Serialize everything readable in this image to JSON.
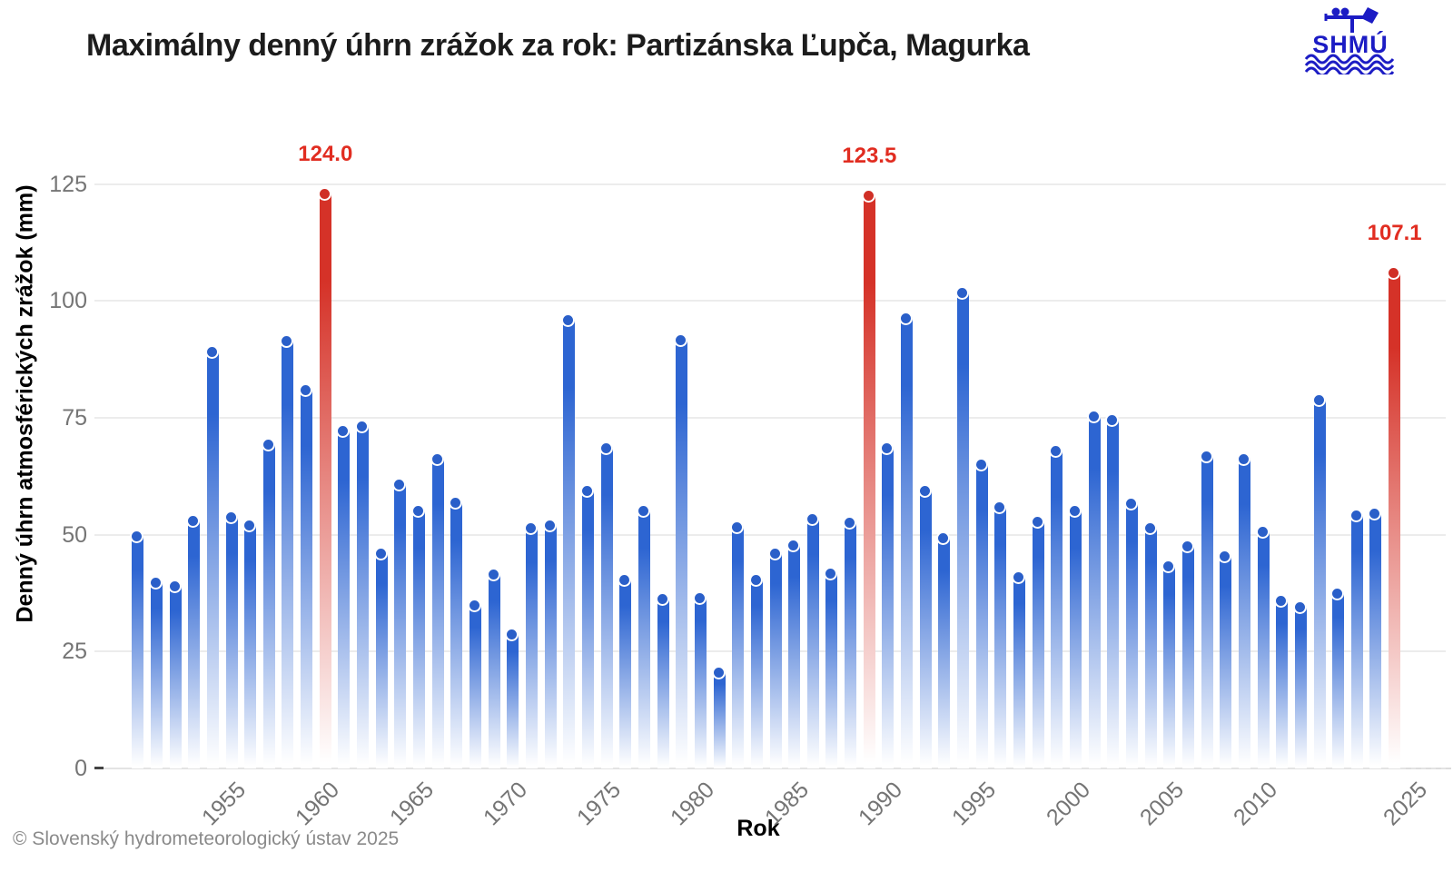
{
  "header": {
    "title": "Maximálny denný úhrn zrážok za rok: Partizánska Ľupča, Magurka",
    "logo_text": "SHMÚ"
  },
  "footer": {
    "credit": "© Slovenský hydrometeorologický ústav 2025"
  },
  "chart_data": {
    "type": "bar",
    "title": "Maximálny denný úhrn zrážok za rok: Partizánska Ľupča, Magurka",
    "xlabel": "Rok",
    "ylabel": "Denný úhrn atmosférických zrážok (mm)",
    "ylim": [
      0,
      130
    ],
    "y_ticks": [
      0,
      25,
      50,
      75,
      100,
      125
    ],
    "grid": "horizontal",
    "legend": "none",
    "colors": {
      "bar_blue": "#2d65d2",
      "bar_red": "#d53228",
      "annotation_red": "#e12d21",
      "axis_text": "#757575",
      "gridline": "#ececec"
    },
    "x_ticks": [
      {
        "label": "1955",
        "slot": 5
      },
      {
        "label": "1960",
        "slot": 10
      },
      {
        "label": "1965",
        "slot": 15
      },
      {
        "label": "1970",
        "slot": 20
      },
      {
        "label": "1975",
        "slot": 25
      },
      {
        "label": "1980",
        "slot": 30
      },
      {
        "label": "1985",
        "slot": 35
      },
      {
        "label": "1990",
        "slot": 40
      },
      {
        "label": "1995",
        "slot": 45
      },
      {
        "label": "2000",
        "slot": 50
      },
      {
        "label": "2005",
        "slot": 55
      },
      {
        "label": "2010",
        "slot": 60
      },
      {
        "label": "2025",
        "slot": 68
      }
    ],
    "highlighted_annotations": [
      {
        "year": 1960,
        "value": "124.0"
      },
      {
        "year": 1989,
        "value": "123.5"
      },
      {
        "year": 2025,
        "value": "107.1"
      }
    ],
    "bars": [
      {
        "year": 1950,
        "value": 50.7
      },
      {
        "year": 1951,
        "value": 40.7
      },
      {
        "year": 1952,
        "value": 40.1
      },
      {
        "year": 1953,
        "value": 54.0
      },
      {
        "year": 1954,
        "value": 90.2
      },
      {
        "year": 1955,
        "value": 54.7
      },
      {
        "year": 1956,
        "value": 53.0
      },
      {
        "year": 1957,
        "value": 70.3
      },
      {
        "year": 1958,
        "value": 92.5
      },
      {
        "year": 1959,
        "value": 81.9
      },
      {
        "year": 1960,
        "value": 124.0,
        "red": true
      },
      {
        "year": 1961,
        "value": 73.3
      },
      {
        "year": 1962,
        "value": 74.3
      },
      {
        "year": 1963,
        "value": 47.1
      },
      {
        "year": 1964,
        "value": 61.7
      },
      {
        "year": 1965,
        "value": 56.1
      },
      {
        "year": 1966,
        "value": 67.3
      },
      {
        "year": 1967,
        "value": 57.8
      },
      {
        "year": 1968,
        "value": 36.0
      },
      {
        "year": 1969,
        "value": 42.5
      },
      {
        "year": 1970,
        "value": 29.8
      },
      {
        "year": 1971,
        "value": 52.4
      },
      {
        "year": 1972,
        "value": 53.1
      },
      {
        "year": 1973,
        "value": 97.0
      },
      {
        "year": 1974,
        "value": 60.4
      },
      {
        "year": 1975,
        "value": 69.5
      },
      {
        "year": 1976,
        "value": 41.3
      },
      {
        "year": 1977,
        "value": 56.2
      },
      {
        "year": 1978,
        "value": 37.2
      },
      {
        "year": 1979,
        "value": 92.6
      },
      {
        "year": 1980,
        "value": 37.5
      },
      {
        "year": 1981,
        "value": 21.6
      },
      {
        "year": 1982,
        "value": 52.6
      },
      {
        "year": 1983,
        "value": 41.4
      },
      {
        "year": 1984,
        "value": 47.1
      },
      {
        "year": 1985,
        "value": 48.8
      },
      {
        "year": 1986,
        "value": 54.3
      },
      {
        "year": 1987,
        "value": 42.8
      },
      {
        "year": 1988,
        "value": 53.6
      },
      {
        "year": 1989,
        "value": 123.5,
        "red": true
      },
      {
        "year": 1990,
        "value": 69.6
      },
      {
        "year": 1991,
        "value": 97.4
      },
      {
        "year": 1992,
        "value": 60.4
      },
      {
        "year": 1993,
        "value": 50.4
      },
      {
        "year": 1994,
        "value": 102.8
      },
      {
        "year": 1995,
        "value": 66.0
      },
      {
        "year": 1996,
        "value": 56.9
      },
      {
        "year": 1997,
        "value": 42.0
      },
      {
        "year": 1998,
        "value": 53.9
      },
      {
        "year": 1999,
        "value": 69.0
      },
      {
        "year": 2000,
        "value": 56.1
      },
      {
        "year": 2001,
        "value": 76.4
      },
      {
        "year": 2002,
        "value": 75.5
      },
      {
        "year": 2003,
        "value": 57.6
      },
      {
        "year": 2004,
        "value": 52.4
      },
      {
        "year": 2005,
        "value": 44.2
      },
      {
        "year": 2006,
        "value": 48.6
      },
      {
        "year": 2007,
        "value": 67.7
      },
      {
        "year": 2008,
        "value": 46.4
      },
      {
        "year": 2009,
        "value": 67.2
      },
      {
        "year": 2010,
        "value": 51.7
      },
      {
        "year": 2011,
        "value": 36.9
      },
      {
        "year": 2012,
        "value": 35.6
      },
      {
        "year": 2013,
        "value": 79.8
      },
      {
        "year": 2014,
        "value": 38.4
      },
      {
        "year": 2015,
        "value": 55.2
      },
      {
        "year": 2016,
        "value": 55.5
      },
      {
        "year": 2025,
        "value": 107.1,
        "red": true
      }
    ]
  }
}
